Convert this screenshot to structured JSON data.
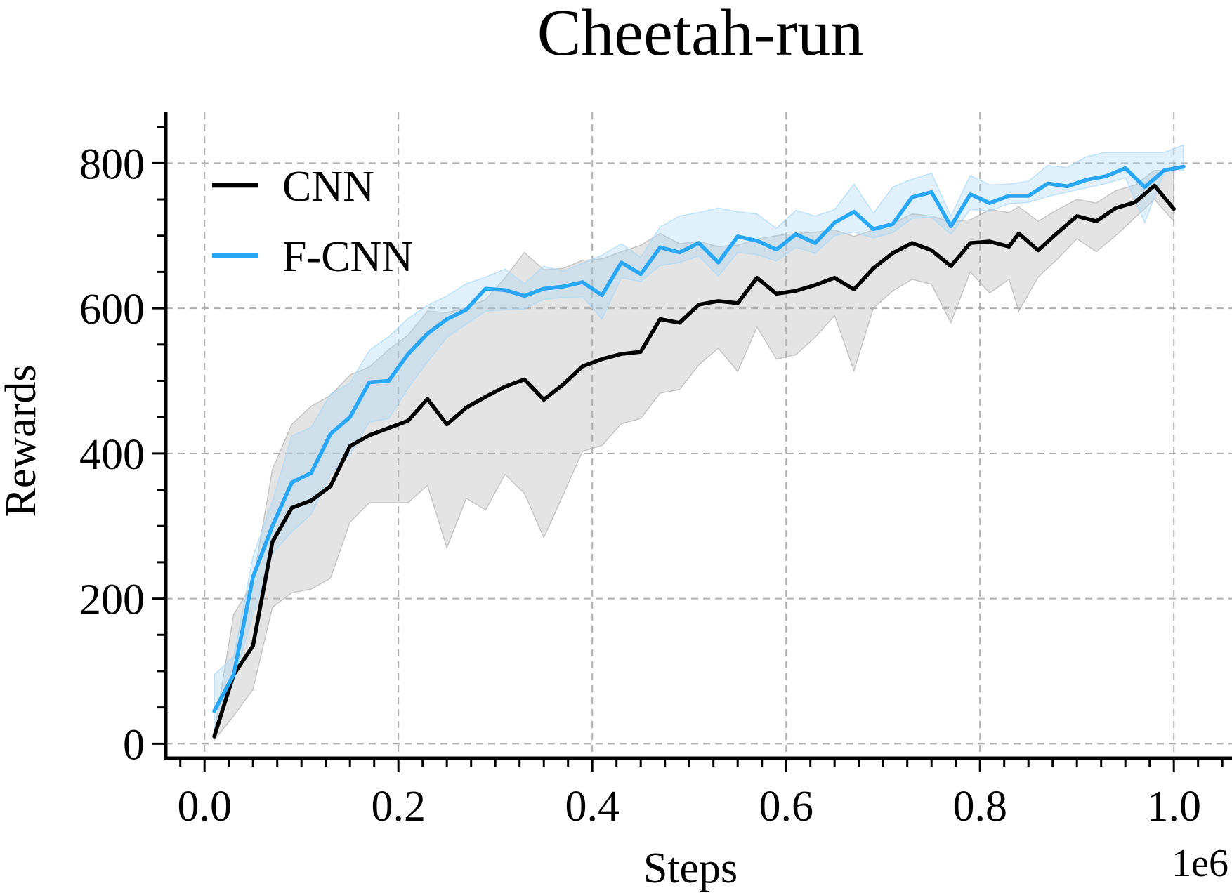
{
  "chart_data": {
    "type": "line",
    "title": "Cheetah-run",
    "xlabel": "Steps",
    "ylabel": "Rewards",
    "x_offset_label": "1e6",
    "xlim": [
      -0.04,
      1.06
    ],
    "ylim": [
      -20,
      870
    ],
    "x_ticks": [
      0.0,
      0.2,
      0.4,
      0.6,
      0.8,
      1.0
    ],
    "x_tick_labels": [
      "0.0",
      "0.2",
      "0.4",
      "0.6",
      "0.8",
      "1.0"
    ],
    "y_ticks": [
      0,
      200,
      400,
      600,
      800
    ],
    "y_tick_labels": [
      "0",
      "200",
      "400",
      "600",
      "800"
    ],
    "grid": true,
    "legend_position": "top-left",
    "series": [
      {
        "name": "CNN",
        "color": "#000000",
        "band_color": "#b3b3b3",
        "x": [
          0.01,
          0.03,
          0.05,
          0.07,
          0.09,
          0.11,
          0.13,
          0.15,
          0.17,
          0.19,
          0.21,
          0.23,
          0.25,
          0.27,
          0.29,
          0.31,
          0.33,
          0.35,
          0.37,
          0.39,
          0.41,
          0.43,
          0.45,
          0.47,
          0.49,
          0.51,
          0.53,
          0.55,
          0.57,
          0.59,
          0.61,
          0.63,
          0.65,
          0.67,
          0.69,
          0.71,
          0.73,
          0.75,
          0.77,
          0.79,
          0.81,
          0.83,
          0.84,
          0.86,
          0.88,
          0.9,
          0.92,
          0.94,
          0.96,
          0.98,
          1.0
        ],
        "y": [
          10,
          95,
          135,
          278,
          325,
          335,
          355,
          410,
          425,
          435,
          445,
          475,
          440,
          463,
          478,
          492,
          502,
          474,
          495,
          520,
          530,
          537,
          540,
          585,
          580,
          605,
          610,
          607,
          642,
          620,
          624,
          632,
          642,
          626,
          655,
          676,
          690,
          680,
          658,
          690,
          692,
          685,
          703,
          680,
          704,
          727,
          720,
          738,
          746,
          769,
          737
        ],
        "lower": [
          5,
          38,
          75,
          188,
          208,
          213,
          228,
          305,
          332,
          332,
          332,
          356,
          270,
          338,
          322,
          371,
          345,
          284,
          343,
          403,
          411,
          441,
          448,
          483,
          488,
          522,
          545,
          513,
          574,
          530,
          536,
          560,
          590,
          514,
          600,
          624,
          640,
          633,
          580,
          650,
          621,
          640,
          596,
          643,
          668,
          696,
          678,
          700,
          725,
          750,
          720
        ],
        "upper": [
          16,
          178,
          222,
          378,
          440,
          465,
          480,
          508,
          519,
          543,
          563,
          596,
          594,
          601,
          612,
          642,
          677,
          653,
          655,
          666,
          668,
          678,
          687,
          703,
          689,
          692,
          685,
          687,
          695,
          700,
          703,
          705,
          708,
          699,
          708,
          717,
          730,
          727,
          719,
          722,
          736,
          732,
          740,
          720,
          736,
          750,
          745,
          762,
          770,
          790,
          790
        ]
      },
      {
        "name": "F-CNN",
        "color": "#27a7f6",
        "band_color": "#a9d8f6",
        "x": [
          0.01,
          0.03,
          0.05,
          0.07,
          0.09,
          0.11,
          0.13,
          0.15,
          0.17,
          0.19,
          0.21,
          0.23,
          0.25,
          0.27,
          0.29,
          0.31,
          0.33,
          0.35,
          0.37,
          0.39,
          0.41,
          0.43,
          0.45,
          0.47,
          0.49,
          0.51,
          0.53,
          0.55,
          0.57,
          0.59,
          0.61,
          0.63,
          0.65,
          0.67,
          0.69,
          0.71,
          0.73,
          0.75,
          0.77,
          0.79,
          0.81,
          0.83,
          0.85,
          0.87,
          0.89,
          0.91,
          0.93,
          0.95,
          0.97,
          0.99,
          1.01
        ],
        "y": [
          45,
          95,
          230,
          300,
          360,
          373,
          427,
          450,
          498,
          500,
          537,
          565,
          585,
          598,
          627,
          625,
          617,
          627,
          630,
          636,
          618,
          663,
          647,
          684,
          677,
          690,
          663,
          699,
          693,
          681,
          702,
          690,
          718,
          733,
          709,
          716,
          753,
          760,
          713,
          757,
          745,
          755,
          755,
          772,
          768,
          777,
          782,
          793,
          767,
          790,
          795
        ],
        "lower": [
          20,
          85,
          178,
          262,
          292,
          316,
          372,
          399,
          443,
          448,
          490,
          526,
          560,
          578,
          596,
          598,
          599,
          612,
          615,
          616,
          585,
          642,
          637,
          659,
          663,
          672,
          644,
          677,
          674,
          665,
          684,
          676,
          700,
          705,
          697,
          704,
          724,
          725,
          702,
          736,
          734,
          744,
          746,
          754,
          760,
          766,
          772,
          780,
          718,
          788,
          790
        ],
        "upper": [
          95,
          120,
          258,
          334,
          424,
          436,
          482,
          497,
          542,
          561,
          586,
          604,
          617,
          634,
          643,
          654,
          634,
          658,
          651,
          662,
          673,
          689,
          670,
          712,
          727,
          732,
          738,
          733,
          730,
          710,
          735,
          727,
          736,
          771,
          731,
          767,
          778,
          786,
          727,
          783,
          770,
          771,
          775,
          797,
          794,
          809,
          815,
          815,
          815,
          815,
          825
        ]
      }
    ]
  }
}
